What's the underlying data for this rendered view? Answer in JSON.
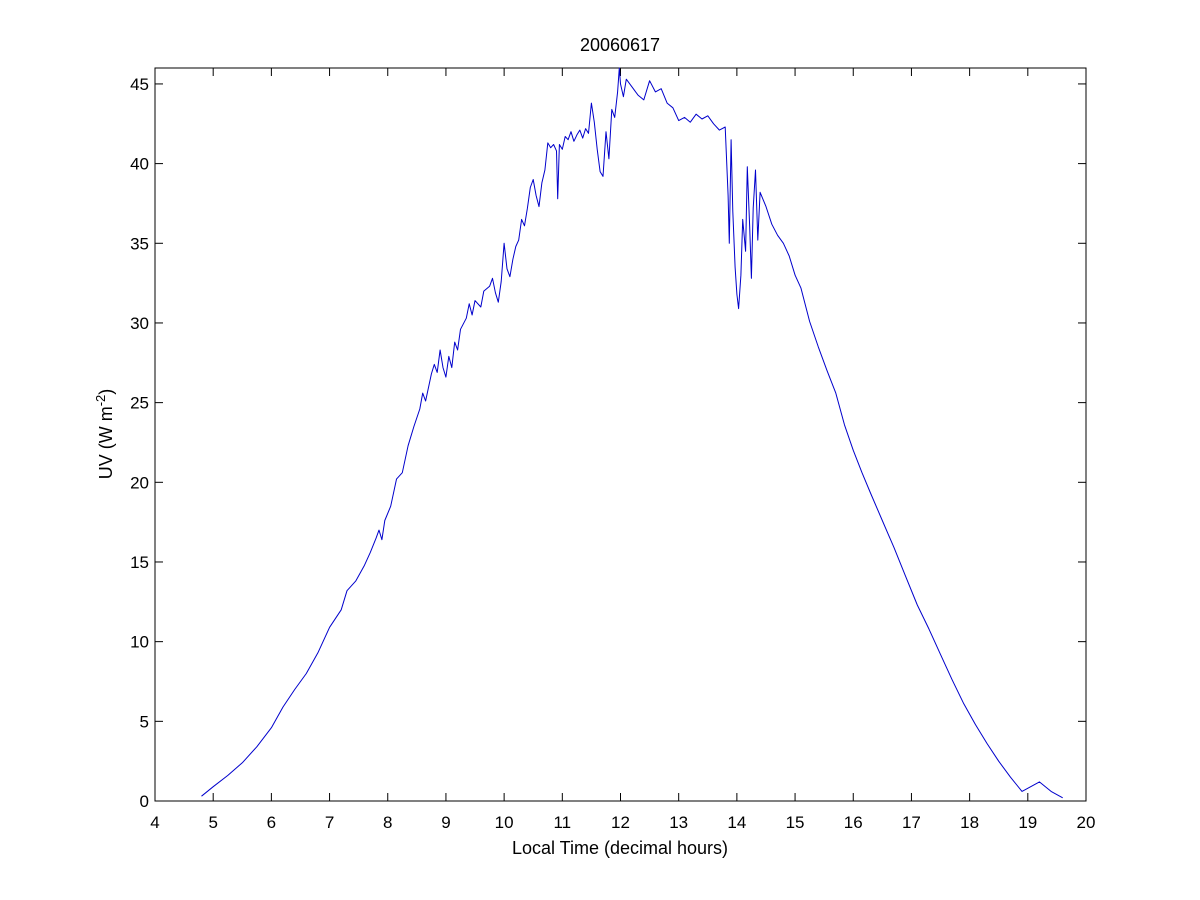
{
  "chart_data": {
    "type": "line",
    "title": "20060617",
    "xlabel": "Local Time (decimal hours)",
    "ylabel": {
      "main": "UV (W m",
      "sup": "-2",
      "end": ")"
    },
    "xlim": [
      4,
      20
    ],
    "ylim": [
      0,
      46
    ],
    "xticks": [
      4,
      5,
      6,
      7,
      8,
      9,
      10,
      11,
      12,
      13,
      14,
      15,
      16,
      17,
      18,
      19,
      20
    ],
    "yticks": [
      0,
      5,
      10,
      15,
      20,
      25,
      30,
      35,
      40,
      45
    ],
    "grid": false,
    "legend": "none",
    "series": [
      {
        "color": "#0000cc",
        "points": [
          [
            4.8,
            0.3
          ],
          [
            5.0,
            0.9
          ],
          [
            5.25,
            1.6
          ],
          [
            5.5,
            2.4
          ],
          [
            5.75,
            3.4
          ],
          [
            6.0,
            4.6
          ],
          [
            6.2,
            5.9
          ],
          [
            6.4,
            7.0
          ],
          [
            6.6,
            8.0
          ],
          [
            6.8,
            9.3
          ],
          [
            7.0,
            10.9
          ],
          [
            7.2,
            12.0
          ],
          [
            7.3,
            13.2
          ],
          [
            7.45,
            13.8
          ],
          [
            7.6,
            14.8
          ],
          [
            7.7,
            15.6
          ],
          [
            7.8,
            16.5
          ],
          [
            7.85,
            17.0
          ],
          [
            7.9,
            16.4
          ],
          [
            7.95,
            17.6
          ],
          [
            8.05,
            18.5
          ],
          [
            8.15,
            20.2
          ],
          [
            8.25,
            20.6
          ],
          [
            8.35,
            22.3
          ],
          [
            8.45,
            23.5
          ],
          [
            8.55,
            24.6
          ],
          [
            8.6,
            25.6
          ],
          [
            8.65,
            25.1
          ],
          [
            8.75,
            26.8
          ],
          [
            8.8,
            27.4
          ],
          [
            8.85,
            26.9
          ],
          [
            8.9,
            28.3
          ],
          [
            8.95,
            27.2
          ],
          [
            9.0,
            26.6
          ],
          [
            9.05,
            27.9
          ],
          [
            9.1,
            27.2
          ],
          [
            9.15,
            28.8
          ],
          [
            9.2,
            28.3
          ],
          [
            9.25,
            29.6
          ],
          [
            9.35,
            30.3
          ],
          [
            9.4,
            31.2
          ],
          [
            9.45,
            30.5
          ],
          [
            9.5,
            31.4
          ],
          [
            9.6,
            31.0
          ],
          [
            9.65,
            32.0
          ],
          [
            9.75,
            32.3
          ],
          [
            9.8,
            32.8
          ],
          [
            9.85,
            31.9
          ],
          [
            9.9,
            31.3
          ],
          [
            9.95,
            32.6
          ],
          [
            10.0,
            35.0
          ],
          [
            10.05,
            33.4
          ],
          [
            10.1,
            32.9
          ],
          [
            10.15,
            34.0
          ],
          [
            10.2,
            34.8
          ],
          [
            10.25,
            35.2
          ],
          [
            10.3,
            36.5
          ],
          [
            10.35,
            36.1
          ],
          [
            10.4,
            37.2
          ],
          [
            10.45,
            38.5
          ],
          [
            10.5,
            39.0
          ],
          [
            10.55,
            38.0
          ],
          [
            10.6,
            37.3
          ],
          [
            10.65,
            38.8
          ],
          [
            10.7,
            39.6
          ],
          [
            10.75,
            41.3
          ],
          [
            10.8,
            41.0
          ],
          [
            10.85,
            41.2
          ],
          [
            10.9,
            40.8
          ],
          [
            10.92,
            37.8
          ],
          [
            10.95,
            41.2
          ],
          [
            11.0,
            40.9
          ],
          [
            11.05,
            41.7
          ],
          [
            11.1,
            41.5
          ],
          [
            11.15,
            42.0
          ],
          [
            11.2,
            41.4
          ],
          [
            11.25,
            41.8
          ],
          [
            11.3,
            42.1
          ],
          [
            11.35,
            41.6
          ],
          [
            11.4,
            42.2
          ],
          [
            11.45,
            41.9
          ],
          [
            11.5,
            43.8
          ],
          [
            11.55,
            42.6
          ],
          [
            11.6,
            40.9
          ],
          [
            11.65,
            39.5
          ],
          [
            11.7,
            39.2
          ],
          [
            11.75,
            42.0
          ],
          [
            11.8,
            40.3
          ],
          [
            11.85,
            43.4
          ],
          [
            11.9,
            42.9
          ],
          [
            11.95,
            44.5
          ],
          [
            11.98,
            46.0
          ],
          [
            12.0,
            45.0
          ],
          [
            12.05,
            44.2
          ],
          [
            12.1,
            45.3
          ],
          [
            12.2,
            44.8
          ],
          [
            12.3,
            44.3
          ],
          [
            12.4,
            44.0
          ],
          [
            12.5,
            45.2
          ],
          [
            12.6,
            44.5
          ],
          [
            12.7,
            44.7
          ],
          [
            12.8,
            43.8
          ],
          [
            12.9,
            43.5
          ],
          [
            13.0,
            42.7
          ],
          [
            13.1,
            42.9
          ],
          [
            13.2,
            42.6
          ],
          [
            13.3,
            43.1
          ],
          [
            13.4,
            42.8
          ],
          [
            13.5,
            43.0
          ],
          [
            13.6,
            42.5
          ],
          [
            13.7,
            42.1
          ],
          [
            13.8,
            42.3
          ],
          [
            13.85,
            38.0
          ],
          [
            13.87,
            35.0
          ],
          [
            13.9,
            41.5
          ],
          [
            13.93,
            37.0
          ],
          [
            13.97,
            33.5
          ],
          [
            14.0,
            31.8
          ],
          [
            14.03,
            30.9
          ],
          [
            14.07,
            33.0
          ],
          [
            14.1,
            36.5
          ],
          [
            14.15,
            34.5
          ],
          [
            14.18,
            39.8
          ],
          [
            14.22,
            36.0
          ],
          [
            14.25,
            32.8
          ],
          [
            14.28,
            37.2
          ],
          [
            14.32,
            39.6
          ],
          [
            14.36,
            35.2
          ],
          [
            14.4,
            38.2
          ],
          [
            14.5,
            37.3
          ],
          [
            14.6,
            36.2
          ],
          [
            14.7,
            35.5
          ],
          [
            14.8,
            35.0
          ],
          [
            14.9,
            34.2
          ],
          [
            15.0,
            33.0
          ],
          [
            15.1,
            32.2
          ],
          [
            15.25,
            30.1
          ],
          [
            15.4,
            28.5
          ],
          [
            15.55,
            27.0
          ],
          [
            15.7,
            25.6
          ],
          [
            15.85,
            23.6
          ],
          [
            16.0,
            22.0
          ],
          [
            16.15,
            20.6
          ],
          [
            16.3,
            19.3
          ],
          [
            16.5,
            17.6
          ],
          [
            16.7,
            15.9
          ],
          [
            16.9,
            14.1
          ],
          [
            17.1,
            12.3
          ],
          [
            17.3,
            10.8
          ],
          [
            17.5,
            9.2
          ],
          [
            17.7,
            7.6
          ],
          [
            17.9,
            6.1
          ],
          [
            18.1,
            4.8
          ],
          [
            18.3,
            3.6
          ],
          [
            18.5,
            2.5
          ],
          [
            18.7,
            1.5
          ],
          [
            18.9,
            0.6
          ],
          [
            19.2,
            1.2
          ],
          [
            19.4,
            0.6
          ],
          [
            19.6,
            0.2
          ]
        ]
      }
    ]
  }
}
